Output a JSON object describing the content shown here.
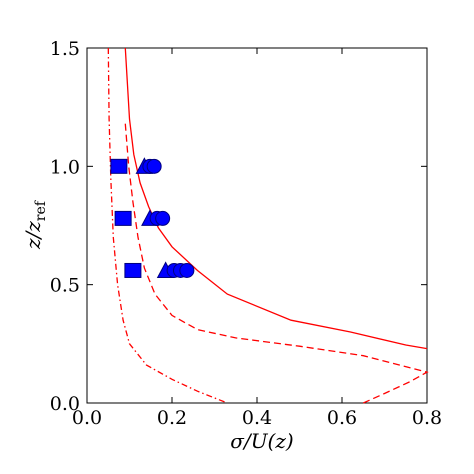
{
  "chart_data": {
    "type": "line",
    "xlabel": "σ/U(z)",
    "ylabel": "z/z_ref",
    "xlim": [
      0.0,
      0.8
    ],
    "ylim": [
      0.0,
      1.5
    ],
    "xticks": [
      "0.0",
      "0.2",
      "0.4",
      "0.6",
      "0.8"
    ],
    "yticks": [
      "0.0",
      "0.5",
      "1.0",
      "1.5"
    ],
    "grid": false,
    "colors": {
      "lines": "#ff0000",
      "markers": "#0000ff",
      "marker_edge": "#000080"
    },
    "series": [
      {
        "style": "solid",
        "points": [
          [
            0.09,
            1.5
          ],
          [
            0.095,
            1.35
          ],
          [
            0.1,
            1.2
          ],
          [
            0.11,
            1.05
          ],
          [
            0.125,
            0.93
          ],
          [
            0.145,
            0.83
          ],
          [
            0.168,
            0.74
          ],
          [
            0.2,
            0.66
          ],
          [
            0.26,
            0.56
          ],
          [
            0.33,
            0.46
          ],
          [
            0.48,
            0.35
          ],
          [
            0.62,
            0.3
          ],
          [
            0.75,
            0.245
          ],
          [
            0.8,
            0.23
          ]
        ]
      },
      {
        "style": "dashed",
        "points": [
          [
            0.09,
            1.18
          ],
          [
            0.098,
            1.0
          ],
          [
            0.108,
            0.85
          ],
          [
            0.12,
            0.7
          ],
          [
            0.135,
            0.57
          ],
          [
            0.16,
            0.46
          ],
          [
            0.2,
            0.37
          ],
          [
            0.26,
            0.31
          ],
          [
            0.35,
            0.275
          ],
          [
            0.5,
            0.24
          ],
          [
            0.65,
            0.2
          ],
          [
            0.8,
            0.13
          ],
          [
            0.76,
            0.09
          ],
          [
            0.7,
            0.04
          ],
          [
            0.65,
            0.0
          ]
        ]
      },
      {
        "style": "dashdot",
        "points": [
          [
            0.05,
            1.5
          ],
          [
            0.052,
            1.2
          ],
          [
            0.056,
            0.95
          ],
          [
            0.062,
            0.7
          ],
          [
            0.072,
            0.5
          ],
          [
            0.085,
            0.35
          ],
          [
            0.1,
            0.25
          ],
          [
            0.14,
            0.16
          ],
          [
            0.2,
            0.1
          ],
          [
            0.26,
            0.05
          ],
          [
            0.33,
            0.0
          ]
        ]
      }
    ],
    "markers": [
      {
        "shape": "square",
        "x": 0.075,
        "y": 1.0
      },
      {
        "shape": "triangle",
        "x": 0.135,
        "y": 1.0
      },
      {
        "shape": "circle",
        "x": 0.148,
        "y": 1.0
      },
      {
        "shape": "circle",
        "x": 0.158,
        "y": 1.0
      },
      {
        "shape": "square",
        "x": 0.085,
        "y": 0.78
      },
      {
        "shape": "triangle",
        "x": 0.148,
        "y": 0.78
      },
      {
        "shape": "circle",
        "x": 0.165,
        "y": 0.78
      },
      {
        "shape": "circle",
        "x": 0.178,
        "y": 0.78
      },
      {
        "shape": "square",
        "x": 0.108,
        "y": 0.56
      },
      {
        "shape": "triangle",
        "x": 0.185,
        "y": 0.56
      },
      {
        "shape": "circle",
        "x": 0.205,
        "y": 0.56
      },
      {
        "shape": "circle",
        "x": 0.22,
        "y": 0.56
      },
      {
        "shape": "circle",
        "x": 0.235,
        "y": 0.56
      }
    ]
  }
}
